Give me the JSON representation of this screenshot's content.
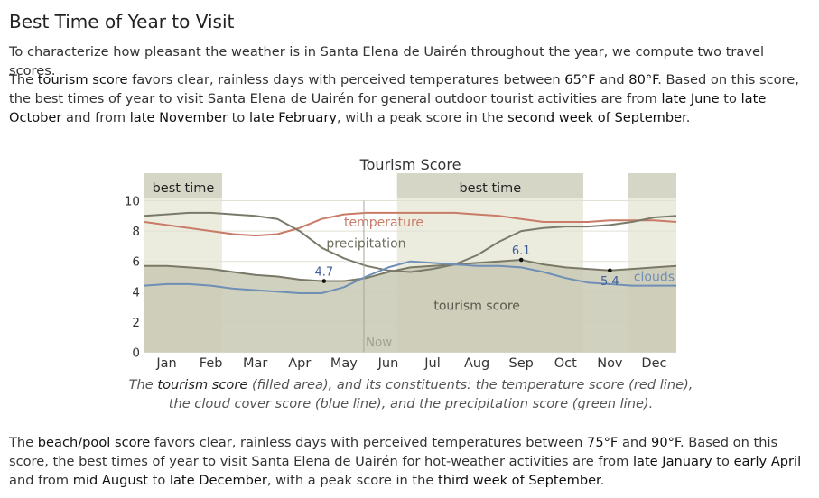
{
  "heading": "Best Time of Year to Visit",
  "intro": "To characterize how pleasant the weather is in Santa Elena de Uairén throughout the year, we compute two travel scores.",
  "tourism_paragraph": {
    "t1": "The ",
    "k1": "tourism score",
    "t2": " favors clear, rainless days with perceived temperatures between ",
    "k2": "65°F",
    "t3": " and ",
    "k3": "80°F",
    "t4": ". Based on this score, the best times of year to visit Santa Elena de Uairén for general outdoor tourist activities are from ",
    "k4": "late June",
    "t5": " to ",
    "k5": "late October",
    "t6": " and from ",
    "k6": "late November",
    "t7": " to ",
    "k7": "late February",
    "t8": ", with a peak score in the ",
    "k8": "second week of September",
    "t9": "."
  },
  "caption": {
    "t1": "The ",
    "k1": "tourism score",
    "t2": " (filled area), and its constituents: the temperature score (red line), the cloud cover score (blue line), and the precipitation score (green line)."
  },
  "beach_paragraph": {
    "t1": "The ",
    "k1": "beach/pool score",
    "t2": " favors clear, rainless days with perceived temperatures between ",
    "k2": "75°F",
    "t3": " and ",
    "k3": "90°F",
    "t4": ". Based on this score, the best times of year to visit Santa Elena de Uairén for hot-weather activities are from ",
    "k4": "late January",
    "t5": " to ",
    "k5": "early April",
    "t6": " and from ",
    "k6": "mid August",
    "t7": " to ",
    "k7": "late December",
    "t8": ", with a peak score in the ",
    "k8": "third week of September",
    "t9": "."
  },
  "chart_data": {
    "type": "area",
    "title": "Tourism Score",
    "x_domain": [
      0,
      12
    ],
    "ylim": [
      0,
      10
    ],
    "y_ticks": [
      0,
      2,
      4,
      6,
      8,
      10
    ],
    "x_labels": [
      "Jan",
      "Feb",
      "Mar",
      "Apr",
      "May",
      "Jun",
      "Jul",
      "Aug",
      "Sep",
      "Oct",
      "Nov",
      "Dec"
    ],
    "best_time_bands": [
      {
        "label": "best time",
        "from": 0,
        "to": 1.75
      },
      {
        "label": "best time",
        "from": 5.7,
        "to": 9.9
      },
      {
        "label": "",
        "from": 10.9,
        "to": 12
      }
    ],
    "now_x": 4.95,
    "now_label": "Now",
    "series": [
      {
        "key": "tourism",
        "name": "tourism score",
        "color": "#7a7866",
        "fill": "#c9c9b4",
        "points": [
          [
            0,
            5.7
          ],
          [
            0.5,
            5.7
          ],
          [
            1,
            5.6
          ],
          [
            1.5,
            5.5
          ],
          [
            2,
            5.3
          ],
          [
            2.5,
            5.1
          ],
          [
            3,
            5.0
          ],
          [
            3.5,
            4.8
          ],
          [
            4,
            4.7
          ],
          [
            4.5,
            4.7
          ],
          [
            5,
            4.9
          ],
          [
            5.5,
            5.3
          ],
          [
            6,
            5.6
          ],
          [
            6.5,
            5.7
          ],
          [
            7,
            5.8
          ],
          [
            7.5,
            5.9
          ],
          [
            8,
            6.0
          ],
          [
            8.5,
            6.1
          ],
          [
            9,
            5.8
          ],
          [
            9.5,
            5.6
          ],
          [
            10,
            5.5
          ],
          [
            10.5,
            5.4
          ],
          [
            11,
            5.5
          ],
          [
            11.5,
            5.6
          ],
          [
            12,
            5.7
          ]
        ]
      },
      {
        "key": "temperature",
        "name": "temperature",
        "color": "#c97b67",
        "points": [
          [
            0,
            8.6
          ],
          [
            0.5,
            8.4
          ],
          [
            1,
            8.2
          ],
          [
            1.5,
            8.0
          ],
          [
            2,
            7.8
          ],
          [
            2.5,
            7.7
          ],
          [
            3,
            7.8
          ],
          [
            3.5,
            8.2
          ],
          [
            4,
            8.8
          ],
          [
            4.5,
            9.1
          ],
          [
            5,
            9.2
          ],
          [
            5.5,
            9.2
          ],
          [
            6,
            9.2
          ],
          [
            6.5,
            9.2
          ],
          [
            7,
            9.2
          ],
          [
            7.5,
            9.1
          ],
          [
            8,
            9.0
          ],
          [
            8.5,
            8.8
          ],
          [
            9,
            8.6
          ],
          [
            9.5,
            8.6
          ],
          [
            10,
            8.6
          ],
          [
            10.5,
            8.7
          ],
          [
            11,
            8.7
          ],
          [
            11.5,
            8.7
          ],
          [
            12,
            8.6
          ]
        ]
      },
      {
        "key": "precipitation",
        "name": "precipitation",
        "color": "#7a7a6a",
        "points": [
          [
            0,
            9.0
          ],
          [
            0.5,
            9.1
          ],
          [
            1,
            9.2
          ],
          [
            1.5,
            9.2
          ],
          [
            2,
            9.1
          ],
          [
            2.5,
            9.0
          ],
          [
            3,
            8.8
          ],
          [
            3.5,
            8.0
          ],
          [
            4,
            6.9
          ],
          [
            4.5,
            6.2
          ],
          [
            5,
            5.7
          ],
          [
            5.5,
            5.4
          ],
          [
            6,
            5.3
          ],
          [
            6.5,
            5.5
          ],
          [
            7,
            5.8
          ],
          [
            7.5,
            6.4
          ],
          [
            8,
            7.3
          ],
          [
            8.5,
            8.0
          ],
          [
            9,
            8.2
          ],
          [
            9.5,
            8.3
          ],
          [
            10,
            8.3
          ],
          [
            10.5,
            8.4
          ],
          [
            11,
            8.6
          ],
          [
            11.5,
            8.9
          ],
          [
            12,
            9.0
          ]
        ]
      },
      {
        "key": "clouds",
        "name": "clouds",
        "color": "#6f8fb6",
        "points": [
          [
            0,
            4.4
          ],
          [
            0.5,
            4.5
          ],
          [
            1,
            4.5
          ],
          [
            1.5,
            4.4
          ],
          [
            2,
            4.2
          ],
          [
            2.5,
            4.1
          ],
          [
            3,
            4.0
          ],
          [
            3.5,
            3.9
          ],
          [
            4,
            3.9
          ],
          [
            4.5,
            4.3
          ],
          [
            5,
            5.0
          ],
          [
            5.5,
            5.6
          ],
          [
            6,
            6.0
          ],
          [
            6.5,
            5.9
          ],
          [
            7,
            5.8
          ],
          [
            7.5,
            5.7
          ],
          [
            8,
            5.7
          ],
          [
            8.5,
            5.6
          ],
          [
            9,
            5.3
          ],
          [
            9.5,
            4.9
          ],
          [
            10,
            4.6
          ],
          [
            10.5,
            4.5
          ],
          [
            11,
            4.4
          ],
          [
            11.5,
            4.4
          ],
          [
            12,
            4.4
          ]
        ]
      }
    ],
    "annotations": [
      {
        "label": "4.7",
        "x": 4.05,
        "y": 4.7
      },
      {
        "label": "6.1",
        "x": 8.5,
        "y": 6.1
      },
      {
        "label": "5.4",
        "x": 10.5,
        "y": 5.4
      }
    ],
    "series_labels": [
      {
        "series": "temperature",
        "label": "temperature",
        "x": 5.4,
        "y": 8.3
      },
      {
        "series": "precipitation",
        "label": "precipitation",
        "x": 5.0,
        "y": 6.9
      },
      {
        "series": "tourism",
        "label": "tourism score",
        "x": 7.5,
        "y": 2.8
      },
      {
        "series": "clouds",
        "label": "clouds",
        "x": 11.5,
        "y": 4.7
      }
    ]
  }
}
